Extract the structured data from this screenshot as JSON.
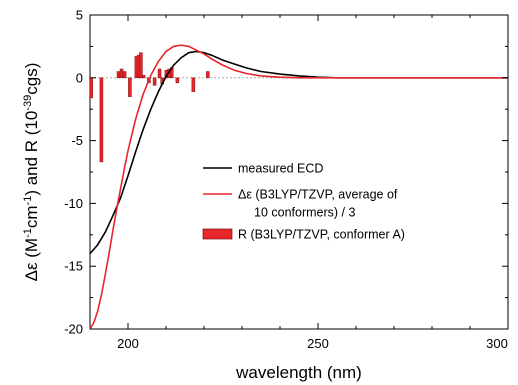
{
  "chart_data": {
    "type": "line",
    "xlabel": "wavelength (nm)",
    "ylabel": {
      "prefix": "Δε (M",
      "sup1": "-1",
      "mid1": "cm",
      "sup2": "-1",
      "mid2": ") and R (10",
      "sup3": "-39",
      "suffix": "cgs)"
    },
    "xlim": [
      190,
      300
    ],
    "ylim": [
      -20,
      5
    ],
    "x_ticks": [
      200,
      250,
      300
    ],
    "y_ticks": [
      5,
      0,
      -5,
      -10,
      -15,
      -20
    ],
    "legend": [
      {
        "label": "measured ECD",
        "kind": "line",
        "color": "#000000"
      },
      {
        "label": "Δε (B3LYP/TZVP, average of",
        "label2": "10 conformers) / 3",
        "kind": "line",
        "color": "#e8262a"
      },
      {
        "label": "R (B3LYP/TZVP, conformer A)",
        "kind": "bar",
        "color": "#e8262a"
      }
    ],
    "series": [
      {
        "name": "measured ECD",
        "color": "#000000",
        "x": [
          190,
          192,
          194,
          196,
          198,
          200,
          202,
          204,
          206,
          208,
          210,
          212,
          214,
          216,
          218,
          220,
          222,
          225,
          228,
          231,
          235,
          240,
          245,
          250,
          255,
          260,
          270,
          280,
          290,
          300
        ],
        "y": [
          -14.0,
          -13.3,
          -12.3,
          -11.0,
          -9.6,
          -7.8,
          -5.9,
          -4.1,
          -2.5,
          -1.1,
          0.1,
          1.0,
          1.6,
          2.0,
          2.1,
          2.0,
          1.8,
          1.4,
          1.1,
          0.8,
          0.5,
          0.3,
          0.15,
          0.05,
          0.0,
          0.0,
          0.0,
          0.0,
          0.0,
          0.0
        ]
      },
      {
        "name": "Δε (B3LYP/TZVP, average of 10 conformers) / 3",
        "color": "#e8262a",
        "x": [
          190,
          191,
          192,
          193,
          194,
          195,
          196,
          197,
          198,
          199,
          200,
          202,
          204,
          206,
          208,
          210,
          212,
          214,
          216,
          218,
          220,
          222,
          225,
          228,
          231,
          235,
          240,
          245,
          250,
          255,
          260,
          270,
          280,
          290,
          300
        ],
        "y": [
          -20.0,
          -19.5,
          -18.6,
          -17.3,
          -15.7,
          -14.0,
          -12.2,
          -10.5,
          -8.9,
          -7.3,
          -5.8,
          -3.3,
          -1.3,
          0.2,
          1.3,
          2.1,
          2.5,
          2.6,
          2.5,
          2.2,
          1.9,
          1.5,
          1.0,
          0.6,
          0.35,
          0.15,
          0.05,
          0.0,
          0.0,
          0.0,
          0.0,
          0.0,
          0.0,
          0.0,
          0.0
        ]
      }
    ],
    "bars": {
      "name": "R (B3LYP/TZVP, conformer A)",
      "color": "#e8262a",
      "x": [
        190.3,
        193.0,
        197.5,
        198.3,
        199.1,
        200.5,
        202.2,
        202.8,
        203.4,
        204.1,
        205.5,
        207.0,
        208.3,
        209.0,
        210.1,
        210.8,
        211.5,
        213.0,
        217.2,
        221.0
      ],
      "y": [
        -1.6,
        -6.7,
        0.5,
        0.7,
        0.5,
        -1.5,
        1.7,
        1.8,
        2.0,
        0.2,
        -0.4,
        -0.6,
        0.7,
        -0.5,
        0.6,
        0.7,
        0.8,
        -0.4,
        -1.1,
        0.5
      ]
    }
  }
}
